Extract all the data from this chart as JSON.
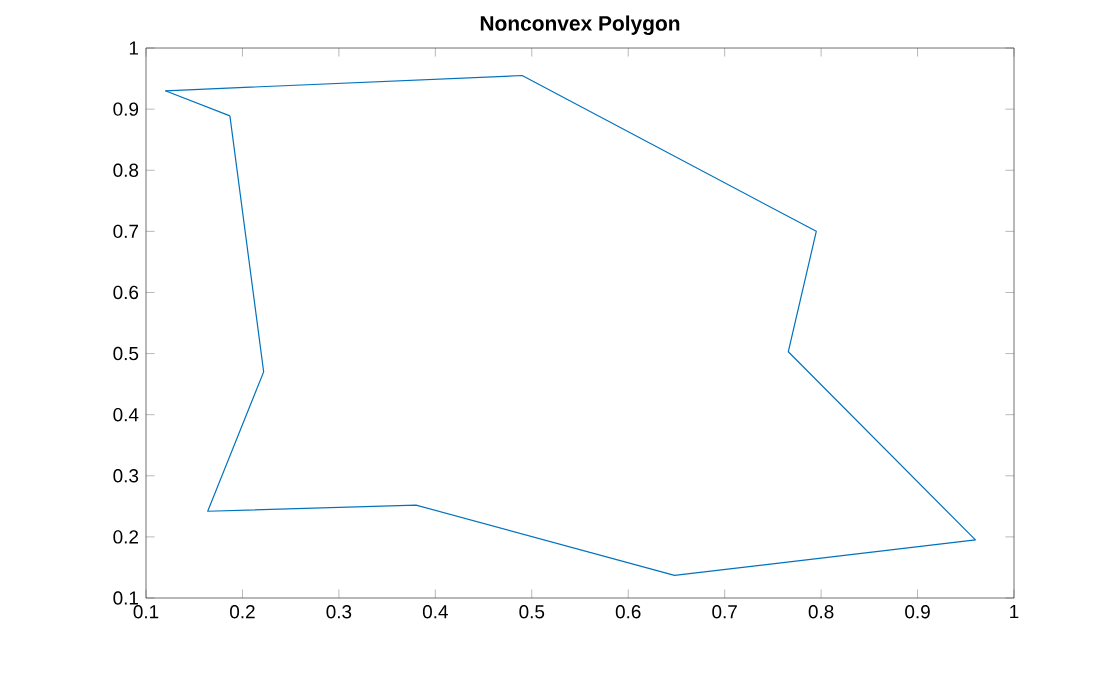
{
  "chart_data": {
    "type": "line",
    "title": "Nonconvex Polygon",
    "series": [
      {
        "color": "#0072bd",
        "x": [
          0.12,
          0.49,
          0.795,
          0.766,
          0.96,
          0.648,
          0.38,
          0.164,
          0.222,
          0.187
        ],
        "values": [
          0.93,
          0.955,
          0.7,
          0.503,
          0.195,
          0.137,
          0.252,
          0.242,
          0.47,
          0.889
        ]
      },
      {
        "color": "#0072bd",
        "x": [
          0.187,
          0.12
        ],
        "values": [
          0.889,
          0.93
        ]
      }
    ],
    "xlim": [
      0.1,
      1
    ],
    "ylim": [
      0.1,
      1
    ],
    "xticks": [
      0.1,
      0.2,
      0.3,
      0.4,
      0.5,
      0.6,
      0.7,
      0.8,
      0.9,
      1
    ],
    "yticks": [
      0.1,
      0.2,
      0.3,
      0.4,
      0.5,
      0.6,
      0.7,
      0.8,
      0.9,
      1
    ],
    "grid": false,
    "marker": "none",
    "line_style": "solid"
  }
}
